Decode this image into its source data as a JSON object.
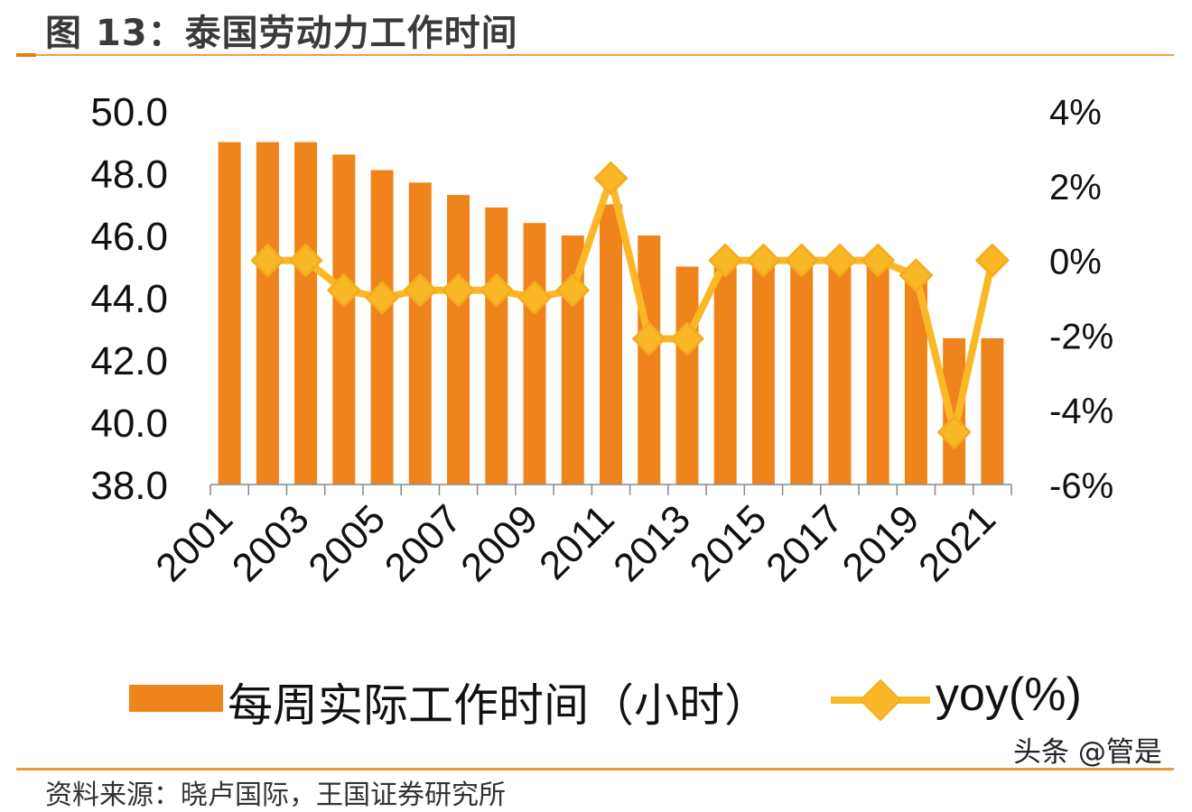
{
  "header": {
    "title": "图 13：泰国劳动力工作时间"
  },
  "legend": {
    "bar_label": "每周实际工作时间（小时）",
    "line_label": "yoy(%)"
  },
  "watermark": "头条 @管是",
  "source": "资料来源：晓卢国际，王国证券研究所",
  "colors": {
    "bar": "#f0841c",
    "line": "#fbb826",
    "title_rule": "#f0a040",
    "text": "#111111"
  },
  "axes": {
    "left_ticks": [
      "50.0",
      "48.0",
      "46.0",
      "44.0",
      "42.0",
      "40.0",
      "38.0"
    ],
    "right_ticks": [
      "4%",
      "2%",
      "0%",
      "-2%",
      "-4%",
      "-6%"
    ],
    "x_labels": [
      "2001",
      "2003",
      "2005",
      "2007",
      "2009",
      "2011",
      "2013",
      "2015",
      "2017",
      "2019",
      "2021"
    ]
  },
  "chart_data": {
    "type": "bar+line",
    "title": "图 13：泰国劳动力工作时间",
    "categories": [
      "2001",
      "2002",
      "2003",
      "2004",
      "2005",
      "2006",
      "2007",
      "2008",
      "2009",
      "2010",
      "2011",
      "2012",
      "2013",
      "2014",
      "2015",
      "2016",
      "2017",
      "2018",
      "2019",
      "2020",
      "2021"
    ],
    "series": [
      {
        "name": "每周实际工作时间（小时）",
        "type": "bar",
        "axis": "left",
        "values": [
          49.0,
          49.0,
          49.0,
          48.6,
          48.1,
          47.7,
          47.3,
          46.9,
          46.4,
          46.0,
          47.0,
          46.0,
          45.0,
          45.0,
          45.0,
          45.0,
          45.0,
          45.0,
          44.9,
          42.7,
          42.7
        ]
      },
      {
        "name": "yoy(%)",
        "type": "line",
        "axis": "right",
        "marker": "diamond",
        "values": [
          null,
          0.0,
          0.0,
          -0.8,
          -1.0,
          -0.8,
          -0.8,
          -0.8,
          -1.0,
          -0.8,
          2.2,
          -2.1,
          -2.1,
          0.0,
          0.0,
          0.0,
          0.0,
          0.0,
          -0.4,
          -4.6,
          0.0
        ]
      }
    ],
    "ylim_left": [
      38,
      50
    ],
    "ylim_right": [
      -6,
      4
    ],
    "left_ticks": [
      50,
      48,
      46,
      44,
      42,
      40,
      38
    ],
    "right_ticks": [
      4,
      2,
      0,
      -2,
      -4,
      -6
    ],
    "xlabel": "",
    "ylabel_left": "",
    "ylabel_right": "",
    "x_tick_labels_shown": [
      "2001",
      "2003",
      "2005",
      "2007",
      "2009",
      "2011",
      "2013",
      "2015",
      "2017",
      "2019",
      "2021"
    ],
    "x_tick_rotation": -45,
    "grid": false,
    "legend_position": "bottom"
  }
}
